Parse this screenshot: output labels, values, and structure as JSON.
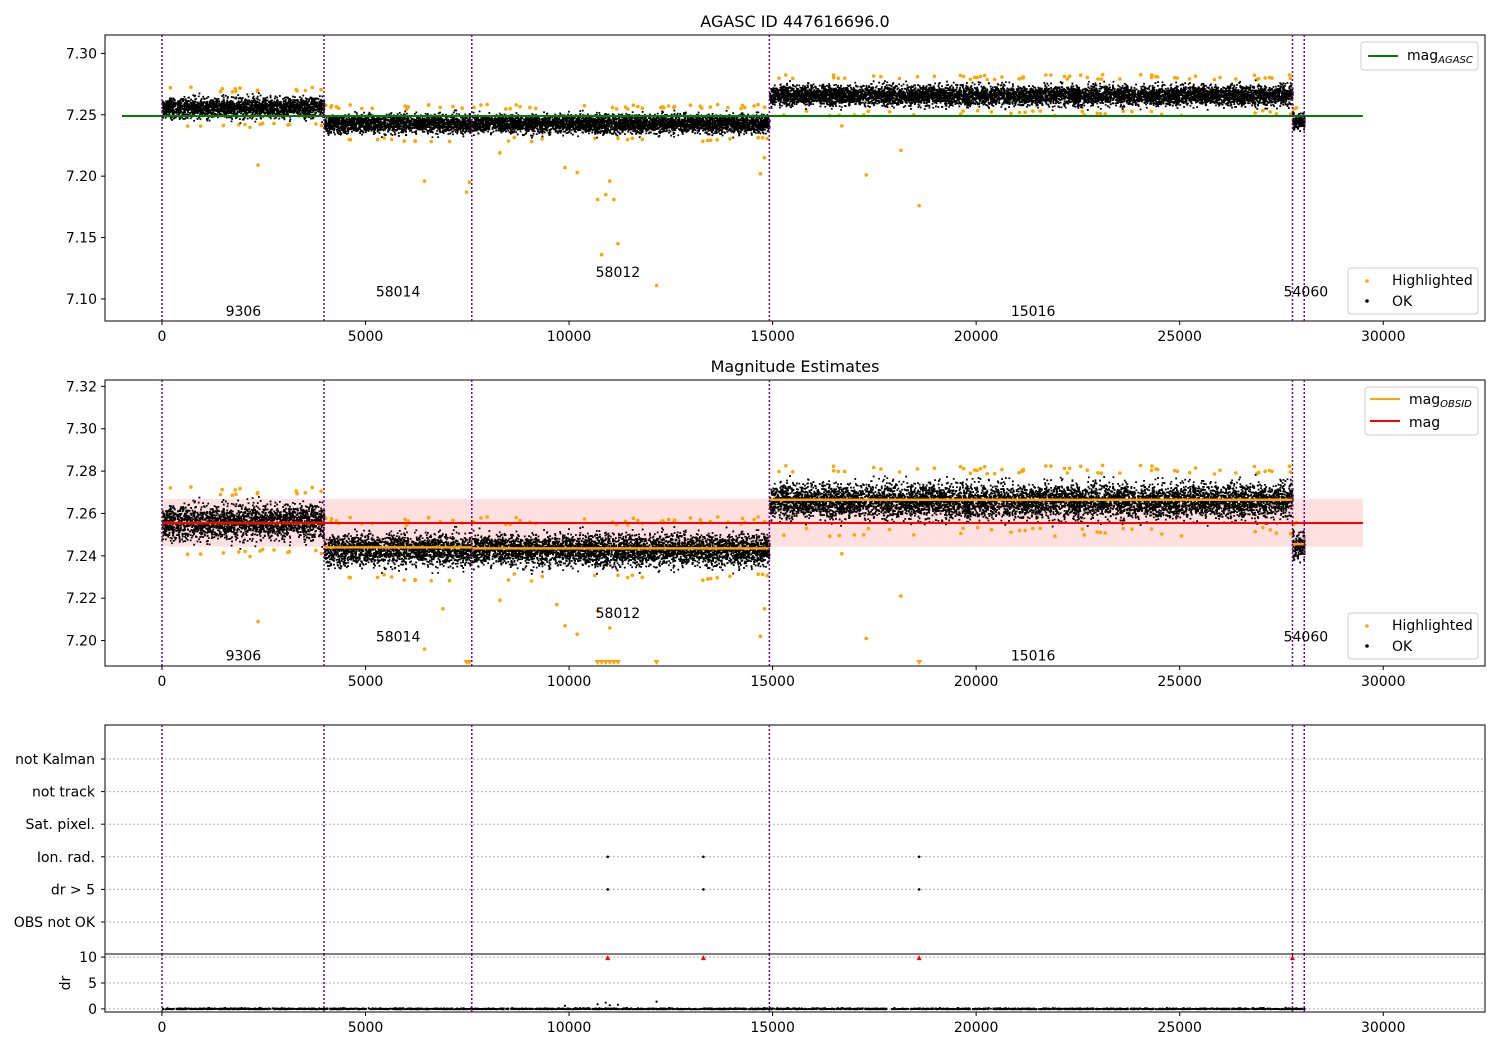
{
  "figure": {
    "top_title": "AGASC ID 447616696.0",
    "middle_title": "Magnitude Estimates"
  },
  "chart_data": [
    {
      "type": "scatter",
      "title": "AGASC ID 447616696.0",
      "xlim": [
        -1400,
        32500
      ],
      "ylim": [
        7.082,
        7.315
      ],
      "x_ticks": [
        0,
        5000,
        10000,
        15000,
        20000,
        25000,
        30000
      ],
      "y_ticks": [
        7.1,
        7.15,
        7.2,
        7.25,
        7.3
      ],
      "y_tick_labels": [
        "7.10",
        "7.15",
        "7.20",
        "7.25",
        "7.30"
      ],
      "obs_boundaries": [
        0,
        3980,
        7610,
        14920,
        27770,
        28060
      ],
      "obsid_labels": [
        {
          "label": "9306",
          "x": 2000,
          "y": 7.09
        },
        {
          "label": "58014",
          "x": 5800,
          "y": 7.106
        },
        {
          "label": "58012",
          "x": 11200,
          "y": 7.122
        },
        {
          "label": "15016",
          "x": 21400,
          "y": 7.09
        },
        {
          "label": "54060",
          "x": 28100,
          "y": 7.106
        }
      ],
      "mag_agasc": 7.249,
      "mag_agasc_x_range": [
        0,
        29500
      ],
      "ok_bands": [
        {
          "x0": 0,
          "x1": 3980,
          "center": 7.256,
          "halfwidth": 0.012
        },
        {
          "x0": 3980,
          "x1": 14920,
          "center": 7.243,
          "halfwidth": 0.011
        },
        {
          "x0": 14920,
          "x1": 27770,
          "center": 7.266,
          "halfwidth": 0.012
        },
        {
          "x0": 27770,
          "x1": 28060,
          "center": 7.245,
          "halfwidth": 0.009
        }
      ],
      "highlighted_points": [
        [
          2360,
          7.209
        ],
        [
          6450,
          7.196
        ],
        [
          7480,
          7.187
        ],
        [
          7550,
          7.195
        ],
        [
          8300,
          7.219
        ],
        [
          9900,
          7.207
        ],
        [
          10200,
          7.203
        ],
        [
          10700,
          7.181
        ],
        [
          10900,
          7.185
        ],
        [
          11000,
          7.196
        ],
        [
          11100,
          7.181
        ],
        [
          10800,
          7.136
        ],
        [
          11200,
          7.145
        ],
        [
          12150,
          7.111
        ],
        [
          14700,
          7.202
        ],
        [
          14800,
          7.215
        ],
        [
          16700,
          7.241
        ],
        [
          17300,
          7.201
        ],
        [
          18150,
          7.221
        ],
        [
          18600,
          7.176
        ]
      ],
      "legend_top": [
        {
          "label": "mag",
          "subscript": "AGASC",
          "color": "#008000"
        }
      ],
      "legend_bottom": [
        {
          "label": "Highlighted",
          "color": "#ffa500"
        },
        {
          "label": "OK",
          "color": "#000000"
        }
      ]
    },
    {
      "type": "scatter",
      "title": "Magnitude Estimates",
      "xlim": [
        -1400,
        32500
      ],
      "ylim": [
        7.188,
        7.323
      ],
      "x_ticks": [
        0,
        5000,
        10000,
        15000,
        20000,
        25000,
        30000
      ],
      "y_ticks": [
        7.2,
        7.22,
        7.24,
        7.26,
        7.28,
        7.3,
        7.32
      ],
      "y_tick_labels": [
        "7.20",
        "7.22",
        "7.24",
        "7.26",
        "7.28",
        "7.30",
        "7.32"
      ],
      "obs_boundaries": [
        0,
        3980,
        7610,
        14920,
        27770,
        28060
      ],
      "obsid_labels": [
        {
          "label": "9306",
          "x": 2000,
          "y": 7.193
        },
        {
          "label": "58014",
          "x": 5800,
          "y": 7.202
        },
        {
          "label": "58012",
          "x": 11200,
          "y": 7.213
        },
        {
          "label": "15016",
          "x": 21400,
          "y": 7.193
        },
        {
          "label": "54060",
          "x": 28100,
          "y": 7.202
        }
      ],
      "mag": 7.2555,
      "mag_band": [
        7.2443,
        7.2669
      ],
      "mag_x_range": [
        0,
        29500
      ],
      "mag_obsid": [
        {
          "x0": 0,
          "x1": 3980,
          "value": 7.2555
        },
        {
          "x0": 3980,
          "x1": 7610,
          "value": 7.244
        },
        {
          "x0": 7610,
          "x1": 14920,
          "value": 7.2435
        },
        {
          "x0": 14920,
          "x1": 27770,
          "value": 7.2665
        },
        {
          "x0": 27770,
          "x1": 28060,
          "value": 7.2455
        }
      ],
      "ok_bands": [
        {
          "x0": 0,
          "x1": 3980,
          "center": 7.256,
          "halfwidth": 0.012
        },
        {
          "x0": 3980,
          "x1": 14920,
          "center": 7.243,
          "halfwidth": 0.011
        },
        {
          "x0": 14920,
          "x1": 27770,
          "center": 7.266,
          "halfwidth": 0.012
        },
        {
          "x0": 27770,
          "x1": 28060,
          "center": 7.245,
          "halfwidth": 0.009
        }
      ],
      "highlighted_points": [
        [
          2360,
          7.209
        ],
        [
          6450,
          7.196
        ],
        [
          6900,
          7.215
        ],
        [
          8300,
          7.219
        ],
        [
          9700,
          7.217
        ],
        [
          9900,
          7.207
        ],
        [
          10200,
          7.203
        ],
        [
          10700,
          7.214
        ],
        [
          11000,
          7.206
        ],
        [
          14700,
          7.202
        ],
        [
          14800,
          7.215
        ],
        [
          16700,
          7.241
        ],
        [
          17300,
          7.201
        ],
        [
          18150,
          7.221
        ]
      ],
      "clipped_points_x": [
        7480,
        7550,
        10700,
        10800,
        10900,
        11000,
        11100,
        11200,
        12150,
        18600
      ],
      "legend_top": [
        {
          "label": "mag",
          "subscript": "OBSID",
          "color": "#ffa500"
        },
        {
          "label": "mag",
          "subscript": "",
          "color": "#ff0000"
        }
      ],
      "legend_bottom": [
        {
          "label": "Highlighted",
          "color": "#ffa500"
        },
        {
          "label": "OK",
          "color": "#000000"
        }
      ]
    },
    {
      "type": "scatter",
      "title": "",
      "xlim": [
        -1400,
        32500
      ],
      "x_ticks": [
        0,
        5000,
        10000,
        15000,
        20000,
        25000,
        30000
      ],
      "categories": [
        "not Kalman",
        "not track",
        "Sat. pixel.",
        "Ion. rad.",
        "dr > 5",
        "OBS not OK"
      ],
      "flag_points": [
        {
          "category": "Ion. rad.",
          "x": [
            10950,
            13300,
            18600
          ]
        },
        {
          "category": "dr > 5",
          "x": [
            10950,
            13300,
            18600
          ]
        }
      ],
      "obs_boundaries": [
        0,
        3980,
        7610,
        14920,
        27770,
        28060
      ]
    },
    {
      "type": "scatter",
      "ylabel": "dr",
      "xlim": [
        -1400,
        32500
      ],
      "ylim": [
        -0.6,
        10.6
      ],
      "y_ticks": [
        0,
        5,
        10
      ],
      "y_tick_labels": [
        "0",
        "5",
        "10"
      ],
      "x_ticks": [
        0,
        5000,
        10000,
        15000,
        20000,
        25000,
        30000
      ],
      "clipped_markers_x": [
        10950,
        13300,
        18600,
        27770
      ],
      "outlier_points": [
        [
          10700,
          0.9
        ],
        [
          10900,
          1.2
        ],
        [
          11000,
          0.7
        ],
        [
          12150,
          1.4
        ],
        [
          9900,
          0.6
        ],
        [
          11200,
          0.8
        ]
      ],
      "obs_boundaries": [
        0,
        3980,
        7610,
        14920,
        27770,
        28060
      ]
    }
  ]
}
